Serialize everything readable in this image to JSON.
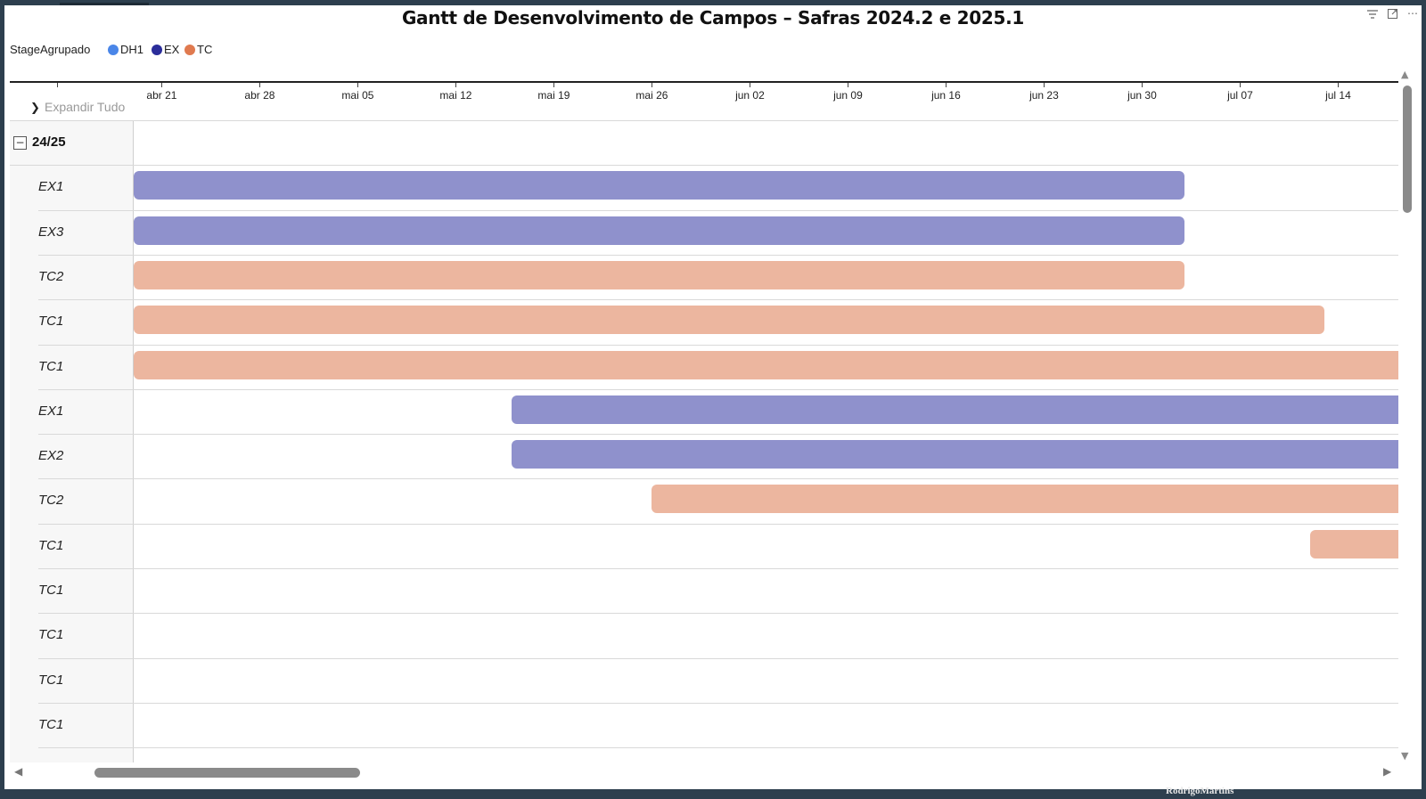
{
  "title": "Gantt de Desenvolvimento de Campos – Safras 2024.2 e 2025.1",
  "legend": {
    "title": "StageAgrupado",
    "items": [
      {
        "label": "DH1",
        "color": "#4a86e8"
      },
      {
        "label": "EX",
        "color": "#2b2d9a"
      },
      {
        "label": "TC",
        "color": "#e07a4f"
      }
    ]
  },
  "expand_all_label": "Expandir Tudo",
  "group": {
    "label": "24/25",
    "toggle": "−"
  },
  "watermark": "RodrigoMartins",
  "chart_data": {
    "type": "gantt",
    "x_axis": {
      "ticks": [
        "abr 21",
        "abr 28",
        "mai 05",
        "mai 12",
        "mai 19",
        "mai 26",
        "jun 02",
        "jun 09",
        "jun 16",
        "jun 23",
        "jun 30",
        "jul 07",
        "jul 14"
      ],
      "range": [
        "2025-04-19",
        "2025-07-19"
      ]
    },
    "bar_colors": {
      "EX": "#8f91cc",
      "TC": "#ecb69f"
    },
    "rows": [
      {
        "label": "EX1",
        "stage": "EX",
        "start": "2025-04-19",
        "end": "2025-07-03"
      },
      {
        "label": "EX3",
        "stage": "EX",
        "start": "2025-04-19",
        "end": "2025-07-03"
      },
      {
        "label": "TC2",
        "stage": "TC",
        "start": "2025-04-19",
        "end": "2025-07-03"
      },
      {
        "label": "TC1",
        "stage": "TC",
        "start": "2025-04-19",
        "end": "2025-07-13"
      },
      {
        "label": "TC1",
        "stage": "TC",
        "start": "2025-04-19",
        "end": "2025-07-19"
      },
      {
        "label": "EX1",
        "stage": "EX",
        "start": "2025-05-16",
        "end": "2025-07-19"
      },
      {
        "label": "EX2",
        "stage": "EX",
        "start": "2025-05-16",
        "end": "2025-07-19"
      },
      {
        "label": "TC2",
        "stage": "TC",
        "start": "2025-05-26",
        "end": "2025-07-19"
      },
      {
        "label": "TC1",
        "stage": "TC",
        "start": "2025-07-12",
        "end": "2025-07-19"
      },
      {
        "label": "TC1",
        "stage": "TC",
        "start": "2025-07-19",
        "end": "2025-07-19"
      },
      {
        "label": "TC1",
        "stage": "TC",
        "start": null,
        "end": null
      },
      {
        "label": "TC1",
        "stage": "TC",
        "start": null,
        "end": null
      },
      {
        "label": "TC1",
        "stage": "TC",
        "start": null,
        "end": null
      }
    ]
  }
}
